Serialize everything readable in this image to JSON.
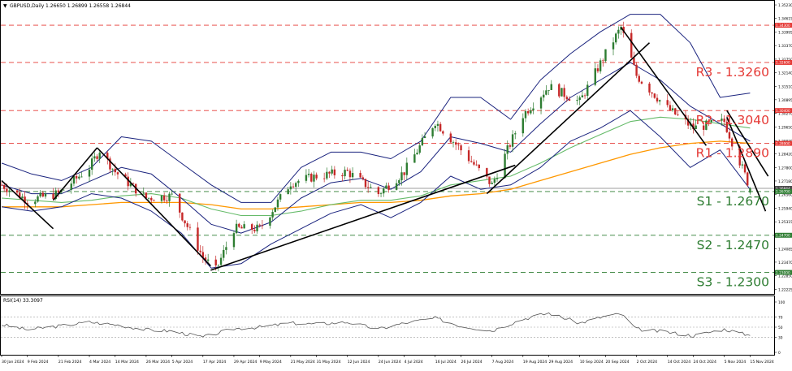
{
  "header": {
    "symbol_text": "GBPUSD,Daily",
    "ohlc_text": "1.26650 1.26899 1.26558 1.26844"
  },
  "price_axis": {
    "ticks": [
      "1.35230",
      "1.34615",
      "1.33995",
      "1.33370",
      "1.32750",
      "1.32140",
      "1.31510",
      "1.30895",
      "1.30270",
      "1.29650",
      "1.29020",
      "1.28420",
      "1.27800",
      "1.27180",
      "1.26560",
      "1.25940",
      "1.25315",
      "1.24705",
      "1.24085",
      "1.23470",
      "1.22850",
      "1.22225"
    ],
    "tick_values": [
      1.3523,
      1.34615,
      1.33995,
      1.3337,
      1.3275,
      1.3214,
      1.3151,
      1.30895,
      1.3027,
      1.2965,
      1.2902,
      1.2842,
      1.278,
      1.2718,
      1.2656,
      1.2594,
      1.25315,
      1.24705,
      1.24085,
      1.2347,
      1.2285,
      1.22225
    ],
    "price_min": 1.2202,
    "price_max": 1.3538,
    "tag_labels": {
      "r3": "1.34300",
      "r3b": "1.32600",
      "r2": "1.30400",
      "r1": "1.28900",
      "s1a": "1.26844",
      "s1b": "1.26700",
      "s2": "1.24700",
      "s3": "1.23000"
    }
  },
  "levels": [
    {
      "label": "R3 - 1.3260",
      "value": 1.326,
      "color": "#e53935",
      "style": "dashed"
    },
    {
      "label": "R2 - 1.3040",
      "value": 1.304,
      "color": "#e53935",
      "style": "dashed"
    },
    {
      "label": "R1 - 1.2890",
      "value": 1.289,
      "color": "#e53935",
      "style": "dashed"
    },
    {
      "label": "S1 - 1.2670",
      "value": 1.267,
      "color": "#2e7d32",
      "style": "dashed"
    },
    {
      "label": "S2 - 1.2470",
      "value": 1.247,
      "color": "#2e7d32",
      "style": "dashed"
    },
    {
      "label": "S3 - 1.2300",
      "value": 1.23,
      "color": "#2e7d32",
      "style": "dashed"
    }
  ],
  "extra_lines": [
    {
      "value": 1.343,
      "color": "#e53935",
      "style": "dashed"
    },
    {
      "value": 1.26844,
      "color": "#9e9e9e",
      "style": "solid"
    }
  ],
  "x_axis": {
    "labels": [
      "30 Jan 2024",
      "9 Feb 2024",
      "21 Feb 2024",
      "4 Mar 2024",
      "14 Mar 2024",
      "26 Mar 2024",
      "5 Apr 2024",
      "17 Apr 2024",
      "29 Apr 2024",
      "9 May 2024",
      "21 May 2024",
      "31 May 2024",
      "12 Jun 2024",
      "24 Jun 2024",
      "4 Jul 2024",
      "16 Jul 2024",
      "26 Jul 2024",
      "7 Aug 2024",
      "19 Aug 2024",
      "29 Aug 2024",
      "10 Sep 2024",
      "20 Sep 2024",
      "2 Oct 2024",
      "14 Oct 2024",
      "24 Oct 2024",
      "5 Nov 2024",
      "15 Nov 2024"
    ]
  },
  "rsi": {
    "title": "RSI(14) 33.3097",
    "ticks": [
      "100",
      "70",
      "50",
      "30",
      "0"
    ],
    "tick_values": [
      100,
      70,
      50,
      30,
      0
    ]
  },
  "chart_data": {
    "type": "candlestick",
    "symbol": "GBPUSD",
    "timeframe": "Daily",
    "last_bar": {
      "open": 1.2665,
      "high": 1.26899,
      "low": 1.26558,
      "close": 1.26844
    },
    "close_path_anchors": [
      {
        "date": "30 Jan 2024",
        "value": 1.27
      },
      {
        "date": "9 Feb 2024",
        "value": 1.263
      },
      {
        "date": "21 Feb 2024",
        "value": 1.266
      },
      {
        "date": "4 Mar 2024",
        "value": 1.278
      },
      {
        "date": "8 Mar 2024",
        "value": 1.286
      },
      {
        "date": "14 Mar 2024",
        "value": 1.276
      },
      {
        "date": "26 Mar 2024",
        "value": 1.264
      },
      {
        "date": "5 Apr 2024",
        "value": 1.265
      },
      {
        "date": "17 Apr 2024",
        "value": 1.237
      },
      {
        "date": "22 Apr 2024",
        "value": 1.231
      },
      {
        "date": "29 Apr 2024",
        "value": 1.25
      },
      {
        "date": "9 May 2024",
        "value": 1.25
      },
      {
        "date": "21 May 2024",
        "value": 1.271
      },
      {
        "date": "31 May 2024",
        "value": 1.274
      },
      {
        "date": "12 Jun 2024",
        "value": 1.276
      },
      {
        "date": "24 Jun 2024",
        "value": 1.266
      },
      {
        "date": "4 Jul 2024",
        "value": 1.276
      },
      {
        "date": "16 Jul 2024",
        "value": 1.299
      },
      {
        "date": "26 Jul 2024",
        "value": 1.286
      },
      {
        "date": "7 Aug 2024",
        "value": 1.27
      },
      {
        "date": "19 Aug 2024",
        "value": 1.302
      },
      {
        "date": "29 Aug 2024",
        "value": 1.315
      },
      {
        "date": "10 Sep 2024",
        "value": 1.308
      },
      {
        "date": "20 Sep 2024",
        "value": 1.33
      },
      {
        "date": "26 Sep 2024",
        "value": 1.342
      },
      {
        "date": "2 Oct 2024",
        "value": 1.32
      },
      {
        "date": "14 Oct 2024",
        "value": 1.305
      },
      {
        "date": "24 Oct 2024",
        "value": 1.296
      },
      {
        "date": "5 Nov 2024",
        "value": 1.299
      },
      {
        "date": "15 Nov 2024",
        "value": 1.2684
      }
    ],
    "bollinger": {
      "upper": [
        1.28,
        1.275,
        1.272,
        1.278,
        1.292,
        1.29,
        1.28,
        1.27,
        1.262,
        1.262,
        1.278,
        1.285,
        1.285,
        1.282,
        1.29,
        1.31,
        1.31,
        1.3,
        1.318,
        1.33,
        1.34,
        1.348,
        1.348,
        1.335,
        1.31,
        1.312
      ],
      "middle": [
        1.27,
        1.266,
        1.266,
        1.272,
        1.278,
        1.275,
        1.264,
        1.252,
        1.248,
        1.253,
        1.264,
        1.271,
        1.273,
        1.268,
        1.276,
        1.292,
        1.289,
        1.285,
        1.298,
        1.31,
        1.318,
        1.326,
        1.318,
        1.306,
        1.298,
        1.29
      ],
      "lower": [
        1.26,
        1.258,
        1.26,
        1.266,
        1.264,
        1.258,
        1.248,
        1.232,
        1.234,
        1.243,
        1.25,
        1.257,
        1.261,
        1.255,
        1.262,
        1.274,
        1.268,
        1.27,
        1.278,
        1.29,
        1.296,
        1.304,
        1.292,
        1.278,
        1.286,
        1.268
      ]
    },
    "ma_green": [
      1.264,
      1.263,
      1.262,
      1.263,
      1.265,
      1.266,
      1.264,
      1.259,
      1.256,
      1.256,
      1.258,
      1.261,
      1.263,
      1.263,
      1.265,
      1.27,
      1.272,
      1.274,
      1.28,
      1.287,
      1.293,
      1.299,
      1.301,
      1.3,
      1.298,
      1.296
    ],
    "ma_orange": [
      1.26,
      1.26,
      1.26,
      1.261,
      1.262,
      1.262,
      1.262,
      1.261,
      1.259,
      1.259,
      1.26,
      1.261,
      1.262,
      1.262,
      1.263,
      1.265,
      1.266,
      1.268,
      1.272,
      1.276,
      1.28,
      1.284,
      1.287,
      1.289,
      1.29,
      1.289
    ],
    "trendlines": [
      {
        "from": {
          "date": "30 Jan 2024",
          "value": 1.272
        },
        "to": {
          "date": "19 Feb 2024",
          "value": 1.25
        }
      },
      {
        "from": {
          "date": "19 Feb 2024",
          "value": 1.263
        },
        "to": {
          "date": "7 Mar 2024",
          "value": 1.287
        }
      },
      {
        "from": {
          "date": "7 Mar 2024",
          "value": 1.287
        },
        "to": {
          "date": "20 Apr 2024",
          "value": 1.233
        }
      },
      {
        "from": {
          "date": "20 Apr 2024",
          "value": 1.231
        },
        "to": {
          "date": "16 Aug 2024",
          "value": 1.279
        }
      },
      {
        "from": {
          "date": "5 Aug 2024",
          "value": 1.266
        },
        "to": {
          "date": "7 Oct 2024",
          "value": 1.335
        }
      },
      {
        "from": {
          "date": "26 Sep 2024",
          "value": 1.342
        },
        "to": {
          "date": "29 Oct 2024",
          "value": 1.288
        }
      },
      {
        "from": {
          "date": "6 Nov 2024",
          "value": 1.304
        },
        "to": {
          "date": "22 Nov 2024",
          "value": 1.274
        }
      },
      {
        "from": {
          "date": "6 Nov 2024",
          "value": 1.301
        },
        "to": {
          "date": "21 Nov 2024",
          "value": 1.258
        }
      }
    ],
    "rsi_path_anchors": [
      {
        "date": "30 Jan 2024",
        "value": 55
      },
      {
        "date": "9 Feb 2024",
        "value": 45
      },
      {
        "date": "21 Feb 2024",
        "value": 52
      },
      {
        "date": "4 Mar 2024",
        "value": 60
      },
      {
        "date": "14 Mar 2024",
        "value": 55
      },
      {
        "date": "26 Mar 2024",
        "value": 45
      },
      {
        "date": "5 Apr 2024",
        "value": 42
      },
      {
        "date": "17 Apr 2024",
        "value": 30
      },
      {
        "date": "29 Apr 2024",
        "value": 47
      },
      {
        "date": "9 May 2024",
        "value": 50
      },
      {
        "date": "21 May 2024",
        "value": 58
      },
      {
        "date": "31 May 2024",
        "value": 56
      },
      {
        "date": "12 Jun 2024",
        "value": 60
      },
      {
        "date": "24 Jun 2024",
        "value": 46
      },
      {
        "date": "4 Jul 2024",
        "value": 58
      },
      {
        "date": "16 Jul 2024",
        "value": 68
      },
      {
        "date": "26 Jul 2024",
        "value": 52
      },
      {
        "date": "7 Aug 2024",
        "value": 43
      },
      {
        "date": "19 Aug 2024",
        "value": 66
      },
      {
        "date": "29 Aug 2024",
        "value": 78
      },
      {
        "date": "10 Sep 2024",
        "value": 58
      },
      {
        "date": "20 Sep 2024",
        "value": 72
      },
      {
        "date": "26 Sep 2024",
        "value": 76
      },
      {
        "date": "2 Oct 2024",
        "value": 46
      },
      {
        "date": "14 Oct 2024",
        "value": 40
      },
      {
        "date": "24 Oct 2024",
        "value": 33
      },
      {
        "date": "5 Nov 2024",
        "value": 46
      },
      {
        "date": "15 Nov 2024",
        "value": 33.3097
      }
    ],
    "colors": {
      "bull": "#2e7d32",
      "bear": "#c62828",
      "bollinger": "#1a237e",
      "ma_green": "#66bb6a",
      "ma_orange": "#ff9800",
      "trend": "#000000",
      "rsi": "#555555"
    }
  }
}
